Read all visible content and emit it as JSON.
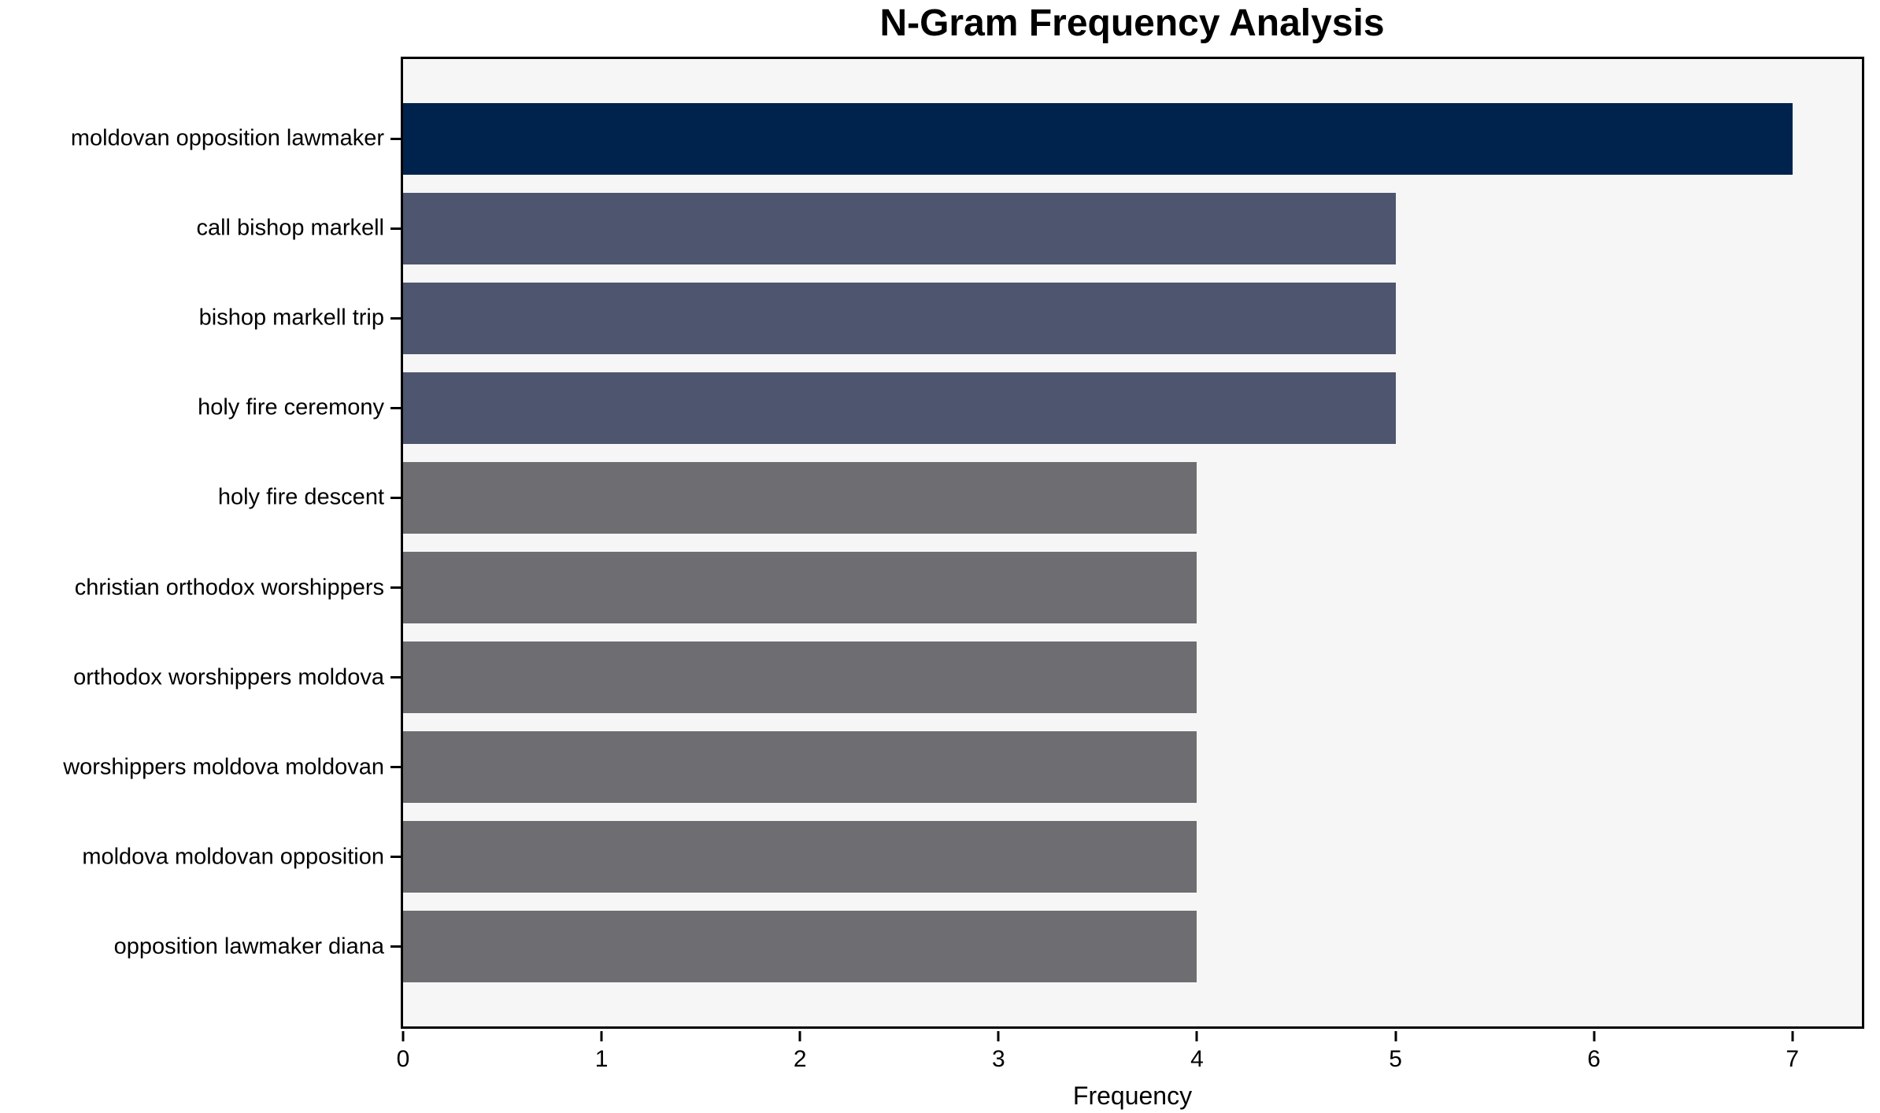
{
  "chart_data": {
    "type": "bar",
    "orientation": "horizontal",
    "title": "N-Gram Frequency Analysis",
    "xlabel": "Frequency",
    "ylabel": "",
    "categories": [
      "moldovan opposition lawmaker",
      "call bishop markell",
      "bishop markell trip",
      "holy fire ceremony",
      "holy fire descent",
      "christian orthodox worshippers",
      "orthodox worshippers moldova",
      "worshippers moldova moldovan",
      "moldova moldovan opposition",
      "opposition lawmaker diana"
    ],
    "values": [
      7,
      5,
      5,
      5,
      4,
      4,
      4,
      4,
      4,
      4
    ],
    "bar_colors": [
      "#00234d",
      "#4d566e",
      "#4d566e",
      "#4d566e",
      "#6e6e72",
      "#6e6e72",
      "#6e6e72",
      "#6e6e72",
      "#6e6e72",
      "#6e6e72"
    ],
    "xticks": [
      0,
      1,
      2,
      3,
      4,
      5,
      6,
      7
    ],
    "xlim": [
      0,
      7.35
    ],
    "grid": false,
    "legend": false,
    "plot_background": "#f6f6f7",
    "figure_background": "#ffffff",
    "spine_color": "#000000"
  }
}
